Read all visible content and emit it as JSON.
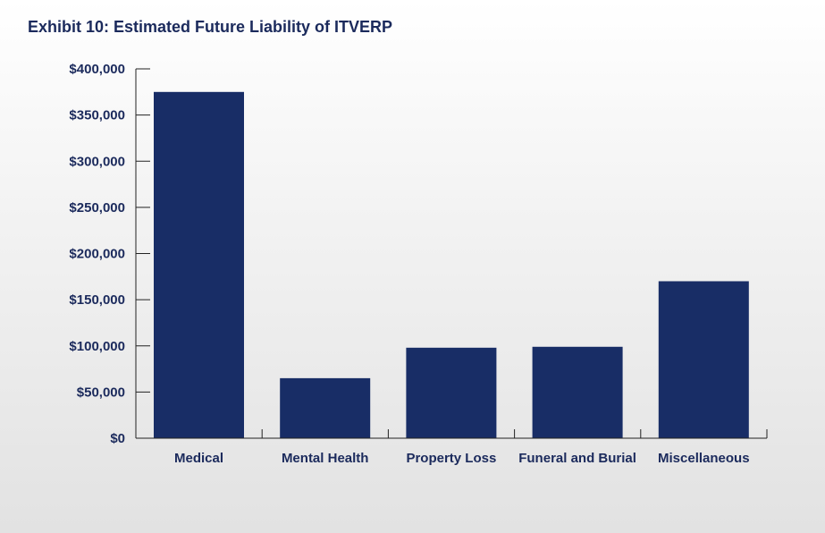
{
  "title": "Exhibit 10: Estimated Future Liability of ITVERP",
  "colors": {
    "bar": "#182d66",
    "text": "#1b2a5c",
    "axis": "#222222"
  },
  "chart_data": {
    "type": "bar",
    "title": "Exhibit 10: Estimated Future Liability of ITVERP",
    "xlabel": "",
    "ylabel": "",
    "categories": [
      "Medical",
      "Mental Health",
      "Property Loss",
      "Funeral and Burial",
      "Miscellaneous"
    ],
    "values": [
      375000,
      65000,
      98000,
      99000,
      170000
    ],
    "ylim": [
      0,
      400000
    ],
    "yticks": [
      0,
      50000,
      100000,
      150000,
      200000,
      250000,
      300000,
      350000,
      400000
    ],
    "ytick_labels": [
      "$0",
      "$50,000",
      "$100,000",
      "$150,000",
      "$200,000",
      "$250,000",
      "$300,000",
      "$350,000",
      "$400,000"
    ],
    "grid": false,
    "legend": "none"
  }
}
